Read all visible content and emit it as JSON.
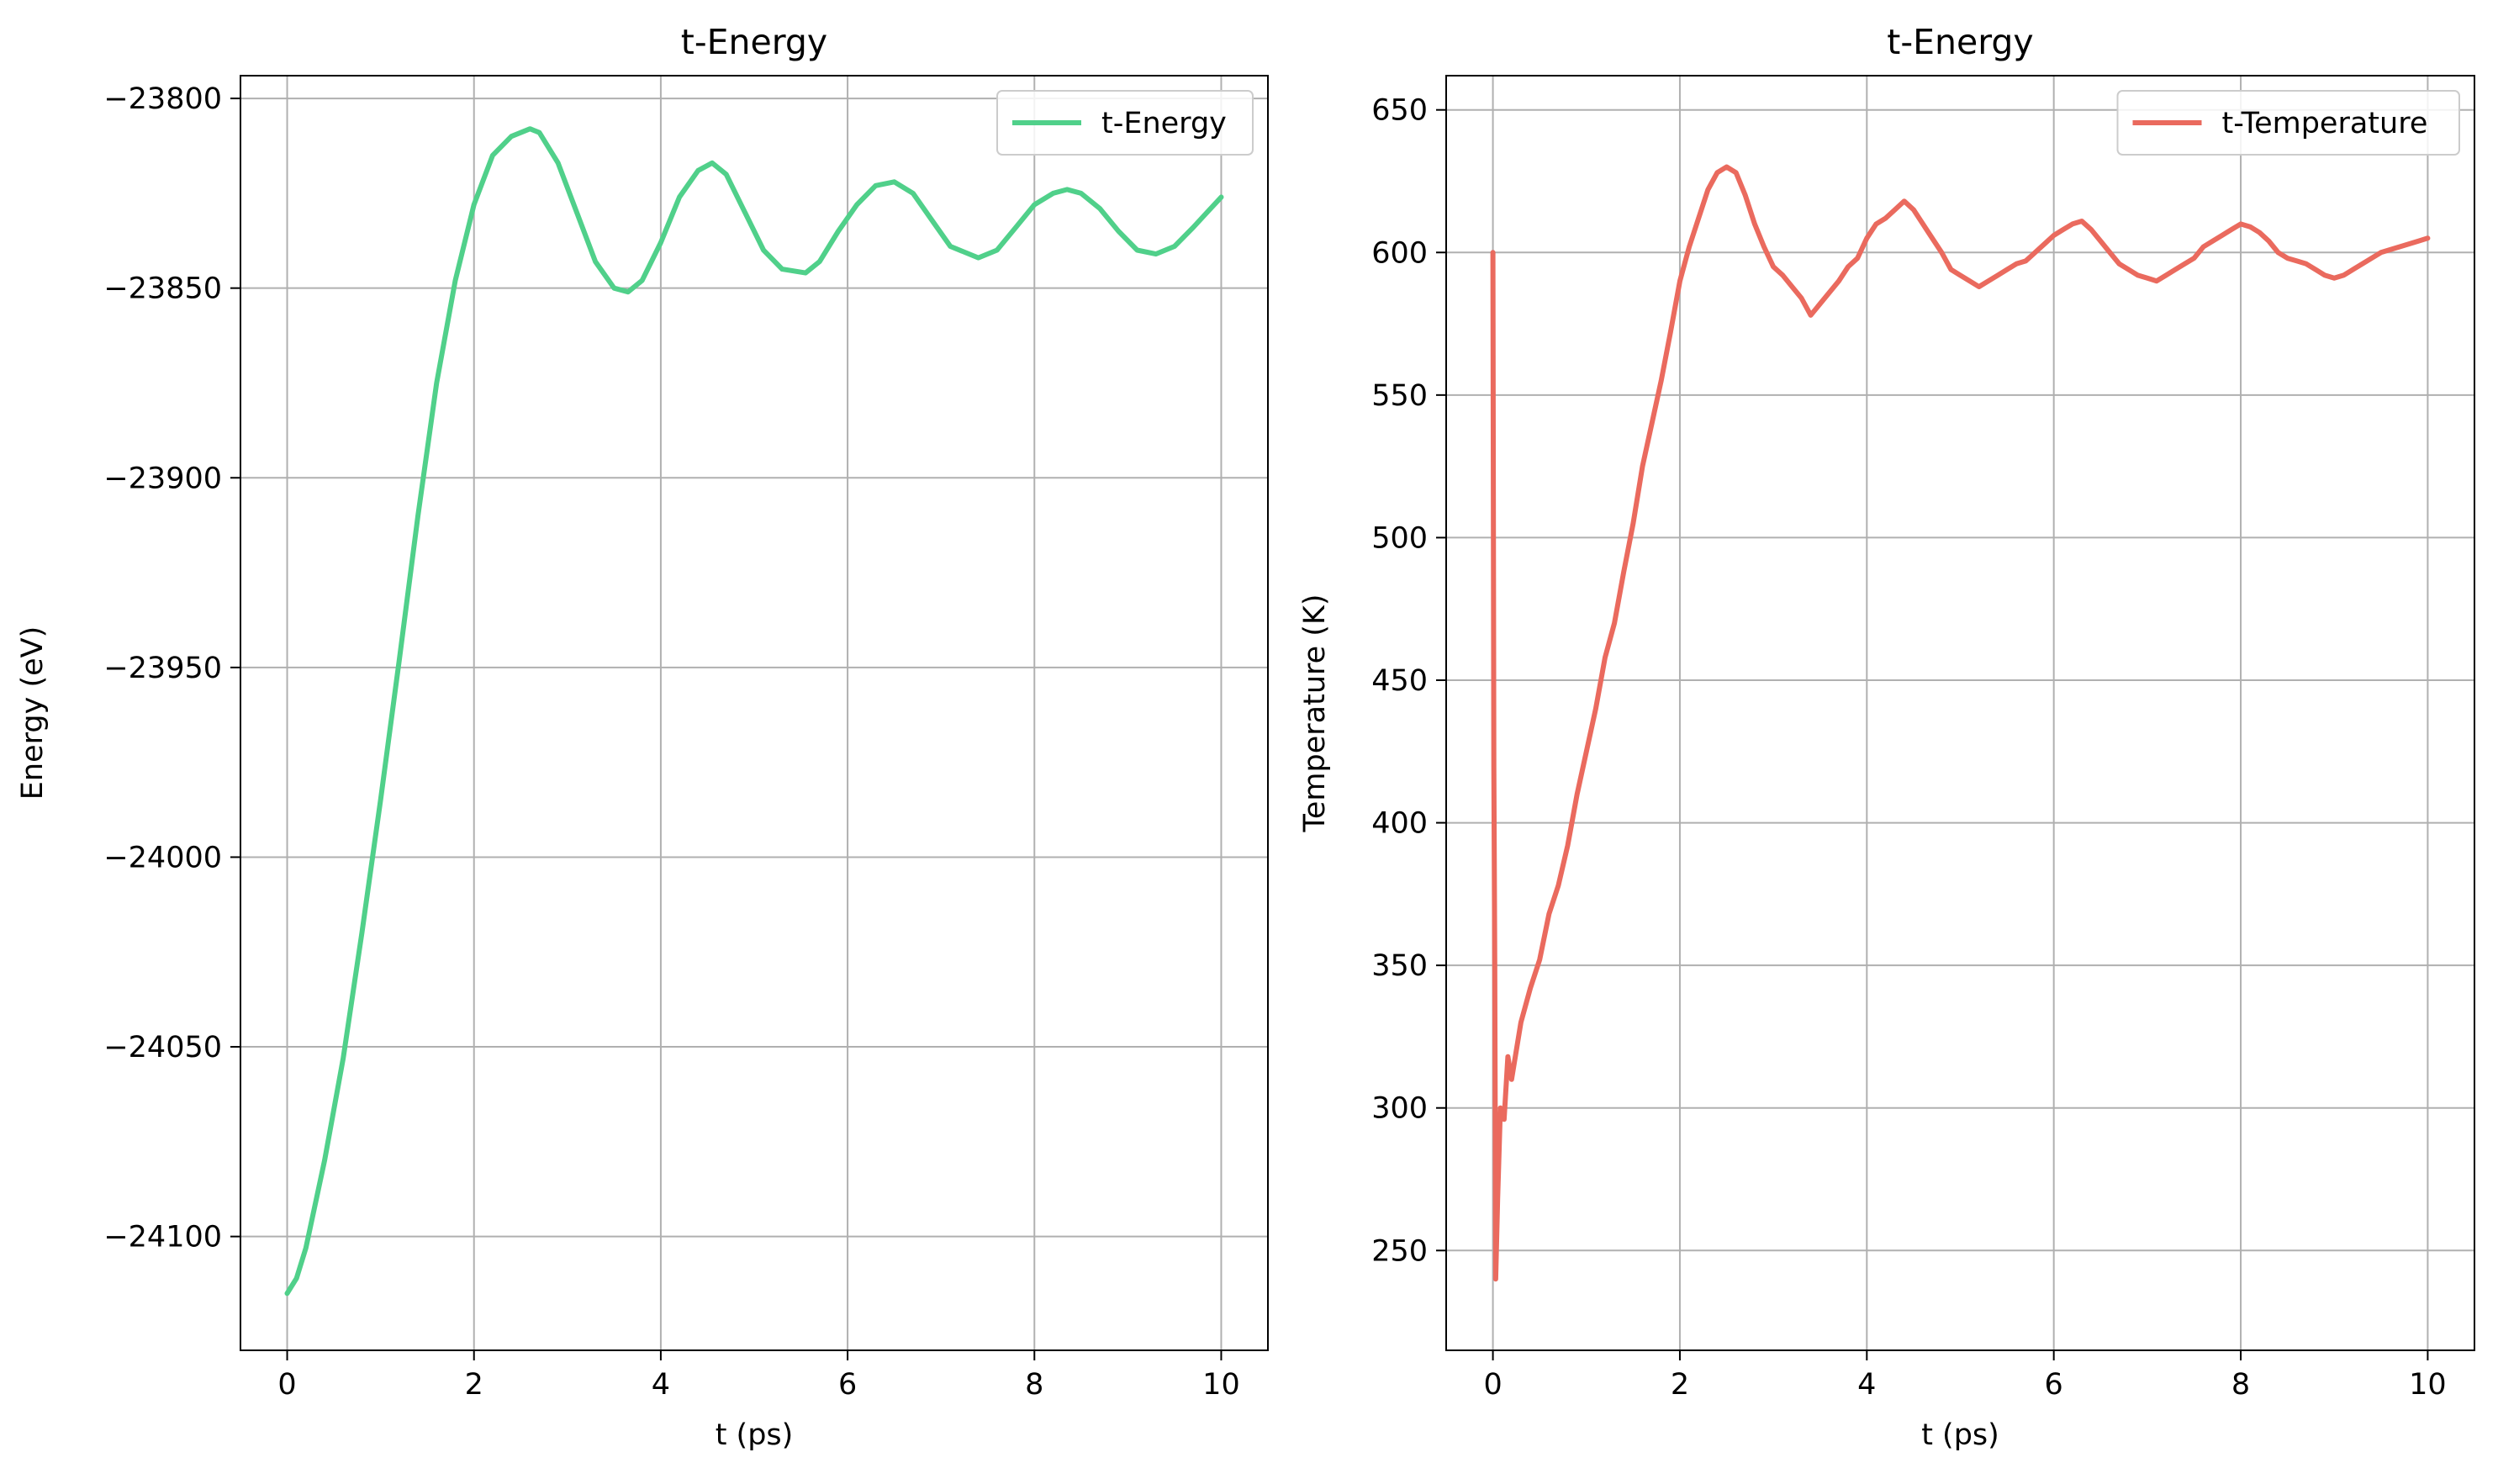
{
  "colors": {
    "energy_line": "#50D08A",
    "temperature_line": "#EA6A5E",
    "grid": "#b0b0b0",
    "axes": "#000000",
    "legend_border": "#cccccc"
  },
  "chart_data": [
    {
      "type": "line",
      "title": "t-Energy",
      "xlabel": "t (ps)",
      "ylabel": "Energy (eV)",
      "xlim": [
        -0.5,
        10.5
      ],
      "ylim": [
        -24130,
        -23794
      ],
      "xticks": [
        0,
        2,
        4,
        6,
        8,
        10
      ],
      "xtick_labels": [
        "0",
        "2",
        "4",
        "6",
        "8",
        "10"
      ],
      "yticks": [
        -24100,
        -24050,
        -24000,
        -23950,
        -23900,
        -23850,
        -23800
      ],
      "ytick_labels": [
        "−24100",
        "−24050",
        "−24000",
        "−23950",
        "−23900",
        "−23850",
        "−23800"
      ],
      "grid": true,
      "legend_position": "upper right",
      "series": [
        {
          "name": "t-Energy",
          "color": "#50D08A",
          "x": [
            0,
            0.1,
            0.2,
            0.4,
            0.6,
            0.8,
            1.0,
            1.2,
            1.4,
            1.6,
            1.8,
            2.0,
            2.2,
            2.4,
            2.6,
            2.7,
            2.9,
            3.1,
            3.3,
            3.5,
            3.65,
            3.8,
            4.0,
            4.2,
            4.4,
            4.55,
            4.7,
            4.9,
            5.1,
            5.3,
            5.55,
            5.7,
            5.9,
            6.1,
            6.3,
            6.5,
            6.7,
            6.9,
            7.1,
            7.4,
            7.6,
            7.8,
            8.0,
            8.2,
            8.35,
            8.5,
            8.7,
            8.9,
            9.1,
            9.3,
            9.5,
            9.7,
            9.85,
            10.0
          ],
          "y": [
            -24115,
            -24111,
            -24103,
            -24080,
            -24053,
            -24020,
            -23985,
            -23948,
            -23910,
            -23875,
            -23848,
            -23828,
            -23815,
            -23810,
            -23808,
            -23809,
            -23817,
            -23830,
            -23843,
            -23850,
            -23851,
            -23848,
            -23838,
            -23826,
            -23819,
            -23817,
            -23820,
            -23830,
            -23840,
            -23845,
            -23846,
            -23843,
            -23835,
            -23828,
            -23823,
            -23822,
            -23825,
            -23832,
            -23839,
            -23842,
            -23840,
            -23834,
            -23828,
            -23825,
            -23824,
            -23825,
            -23829,
            -23835,
            -23840,
            -23841,
            -23839,
            -23834,
            -23830,
            -23826
          ]
        }
      ]
    },
    {
      "type": "line",
      "title": "t-Energy",
      "xlabel": "t (ps)",
      "ylabel": "Temperature (K)",
      "xlim": [
        -0.5,
        10.5
      ],
      "ylim": [
        215,
        662
      ],
      "xticks": [
        0,
        2,
        4,
        6,
        8,
        10
      ],
      "xtick_labels": [
        "0",
        "2",
        "4",
        "6",
        "8",
        "10"
      ],
      "yticks": [
        250,
        300,
        350,
        400,
        450,
        500,
        550,
        600,
        650
      ],
      "ytick_labels": [
        "250",
        "300",
        "350",
        "400",
        "450",
        "500",
        "550",
        "600",
        "650"
      ],
      "grid": true,
      "legend_position": "upper right",
      "series": [
        {
          "name": "t-Temperature",
          "color": "#EA6A5E",
          "x": [
            0,
            0.01,
            0.02,
            0.03,
            0.05,
            0.08,
            0.12,
            0.16,
            0.2,
            0.3,
            0.4,
            0.5,
            0.6,
            0.7,
            0.8,
            0.9,
            1.0,
            1.1,
            1.2,
            1.3,
            1.4,
            1.5,
            1.6,
            1.7,
            1.8,
            1.9,
            2.0,
            2.1,
            2.2,
            2.3,
            2.4,
            2.5,
            2.6,
            2.7,
            2.8,
            2.9,
            3.0,
            3.1,
            3.2,
            3.3,
            3.4,
            3.5,
            3.6,
            3.7,
            3.8,
            3.9,
            4.0,
            4.1,
            4.2,
            4.3,
            4.4,
            4.5,
            4.6,
            4.7,
            4.8,
            4.9,
            5.0,
            5.1,
            5.2,
            5.3,
            5.4,
            5.5,
            5.6,
            5.7,
            5.8,
            5.9,
            6.0,
            6.1,
            6.2,
            6.3,
            6.4,
            6.5,
            6.6,
            6.7,
            6.8,
            6.9,
            7.0,
            7.1,
            7.2,
            7.3,
            7.4,
            7.5,
            7.6,
            7.7,
            7.8,
            7.9,
            8.0,
            8.1,
            8.2,
            8.3,
            8.4,
            8.5,
            8.6,
            8.7,
            8.8,
            8.9,
            9.0,
            9.1,
            9.2,
            9.3,
            9.4,
            9.5,
            9.6,
            9.7,
            9.8,
            9.9,
            10.0
          ],
          "y": [
            600,
            420,
            350,
            240,
            268,
            300,
            296,
            318,
            310,
            330,
            342,
            352,
            368,
            378,
            392,
            410,
            425,
            440,
            458,
            470,
            488,
            505,
            525,
            540,
            555,
            572,
            590,
            602,
            612,
            622,
            628,
            630,
            628,
            620,
            610,
            602,
            595,
            592,
            588,
            584,
            578,
            582,
            586,
            590,
            595,
            598,
            605,
            610,
            612,
            615,
            618,
            615,
            610,
            605,
            600,
            594,
            592,
            590,
            588,
            590,
            592,
            594,
            596,
            597,
            600,
            603,
            606,
            608,
            610,
            611,
            608,
            604,
            600,
            596,
            594,
            592,
            591,
            590,
            592,
            594,
            596,
            598,
            602,
            604,
            606,
            608,
            610,
            609,
            607,
            604,
            600,
            598,
            597,
            596,
            594,
            592,
            591,
            592,
            594,
            596,
            598,
            600,
            601,
            602,
            603,
            604,
            605
          ]
        }
      ]
    }
  ]
}
